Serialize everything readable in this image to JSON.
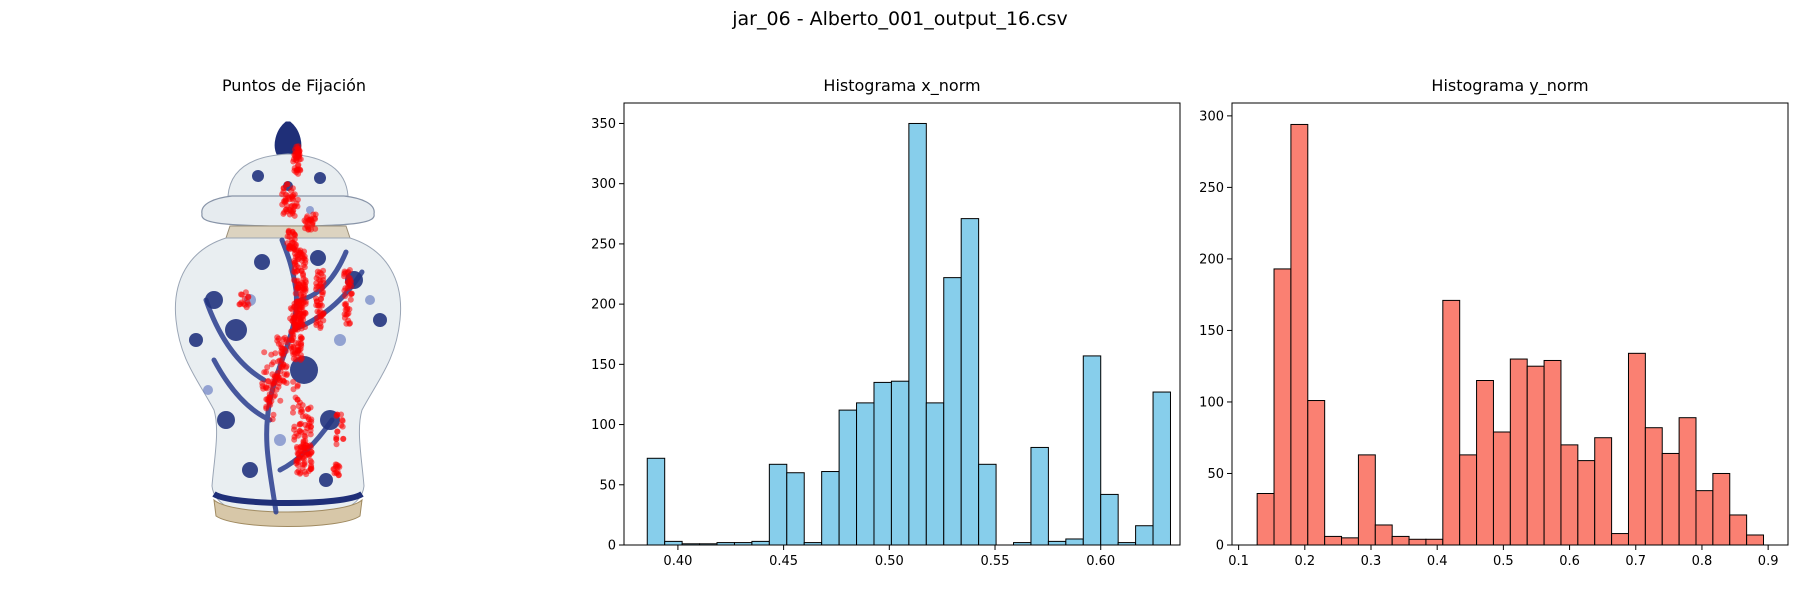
{
  "suptitle": "jar_06 - Alberto_001_output_16.csv",
  "panels": {
    "image_title": "Puntos de Fijación",
    "hist_x_title": "Histograma x_norm",
    "hist_y_title": "Histograma y_norm"
  },
  "colors": {
    "x_bars": "#87ceeb",
    "y_bars": "#fa8072",
    "fixation_points": "#ff0000",
    "vase_body": "#e9eef1",
    "vase_pattern": "#1f2f78"
  },
  "chart_data": [
    {
      "type": "scatter",
      "title": "Puntos de Fijación",
      "description_kind": "image-with-fixations",
      "axes_visible": false
    },
    {
      "type": "bar",
      "title": "Histograma x_norm",
      "xlabel": "",
      "ylabel": "",
      "bin_start": 0.3855,
      "bin_width": 0.00825,
      "values": [
        72,
        3,
        1,
        1,
        2,
        2,
        3,
        67,
        60,
        2,
        61,
        112,
        118,
        135,
        136,
        350,
        118,
        222,
        271,
        67,
        0,
        2,
        81,
        3,
        5,
        157,
        42,
        2,
        16,
        127
      ],
      "xlim": [
        0.3745,
        0.6375
      ],
      "ylim": [
        0,
        367
      ],
      "xticks": [
        0.4,
        0.45,
        0.5,
        0.55,
        0.6
      ],
      "xtick_labels": [
        "0.40",
        "0.45",
        "0.50",
        "0.55",
        "0.60"
      ],
      "yticks": [
        0,
        50,
        100,
        150,
        200,
        250,
        300,
        350
      ],
      "ytick_labels": [
        "0",
        "50",
        "100",
        "150",
        "200",
        "250",
        "300",
        "350"
      ]
    },
    {
      "type": "bar",
      "title": "Histograma y_norm",
      "xlabel": "",
      "ylabel": "",
      "bin_start": 0.128,
      "bin_width": 0.0255,
      "values": [
        36,
        193,
        294,
        101,
        6,
        5,
        63,
        14,
        6,
        4,
        4,
        171,
        63,
        115,
        79,
        130,
        125,
        129,
        70,
        59,
        75,
        8,
        134,
        82,
        64,
        89,
        38,
        50,
        21,
        7
      ],
      "xlim": [
        0.09,
        0.93
      ],
      "ylim": [
        0,
        309
      ],
      "xticks": [
        0.1,
        0.2,
        0.3,
        0.4,
        0.5,
        0.6,
        0.7,
        0.8,
        0.9
      ],
      "xtick_labels": [
        "0.1",
        "0.2",
        "0.3",
        "0.4",
        "0.5",
        "0.6",
        "0.7",
        "0.8",
        "0.9"
      ],
      "yticks": [
        0,
        50,
        100,
        150,
        200,
        250,
        300
      ],
      "ytick_labels": [
        "0",
        "50",
        "100",
        "150",
        "200",
        "250",
        "300"
      ]
    }
  ]
}
